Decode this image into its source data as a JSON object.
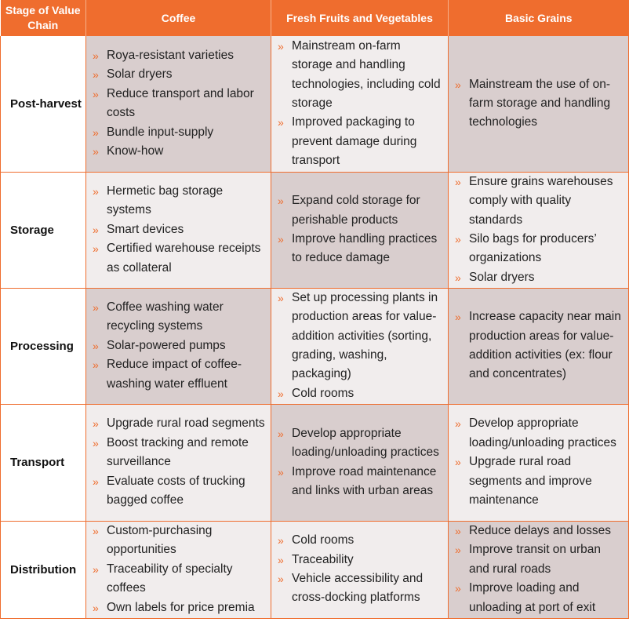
{
  "headers": [
    "Stage of Value Chain",
    "Coffee",
    "Fresh Fruits and Vegetables",
    "Basic Grains"
  ],
  "rows": [
    {
      "stage": "Post-harvest",
      "coffee": [
        "Roya-resistant varieties",
        "Solar dryers",
        "Reduce transport and labor costs",
        "Bundle input-supply",
        "Know-how"
      ],
      "fruits": [
        "Mainstream on-farm storage and handling technologies, including cold storage",
        "Improved packaging to prevent damage during transport"
      ],
      "grains": [
        "Mainstream the use of on-farm storage and handling technologies"
      ]
    },
    {
      "stage": "Storage",
      "coffee": [
        "Hermetic bag storage systems",
        "Smart devices",
        "Certified warehouse receipts as collateral"
      ],
      "fruits": [
        "Expand cold storage for perishable products",
        "Improve handling practices to reduce damage"
      ],
      "grains": [
        "Ensure grains warehouses comply with quality standards",
        "Silo bags for producers’ organizations",
        "Solar dryers"
      ]
    },
    {
      "stage": "Processing",
      "coffee": [
        "Coffee washing water recycling systems",
        "Solar-powered pumps",
        "Reduce impact of coffee-washing water effluent"
      ],
      "fruits": [
        "Set up processing plants in production areas for value-addition activities (sorting, grading, washing, packaging)",
        "Cold rooms"
      ],
      "grains": [
        "Increase capacity near main production areas for value-addition activities (ex: flour and concentrates)"
      ]
    },
    {
      "stage": "Transport",
      "coffee": [
        "Upgrade rural road segments",
        "Boost tracking and remote surveillance",
        "Evaluate costs of trucking bagged coffee"
      ],
      "fruits": [
        "Develop appropriate loading/unloading practices",
        "Improve road maintenance and links with urban areas"
      ],
      "grains": [
        "Develop appropriate loading/unloading practices",
        "Upgrade rural road segments and improve maintenance"
      ]
    },
    {
      "stage": "Distribution",
      "coffee": [
        "Custom-purchasing opportunities",
        "Traceability of specialty coffees",
        "Own labels for price premia"
      ],
      "fruits": [
        "Cold rooms",
        "Traceability",
        "Vehicle accessibility and cross-docking platforms"
      ],
      "grains": [
        "Reduce delays and losses",
        "Improve transit on urban and rural roads",
        "Improve loading and unloading at port of exit"
      ]
    }
  ],
  "colors": {
    "header": "#ef6d2e",
    "cell_dark": "#d9cece",
    "cell_light": "#f1eded",
    "bullet": "#ef6d2e"
  }
}
